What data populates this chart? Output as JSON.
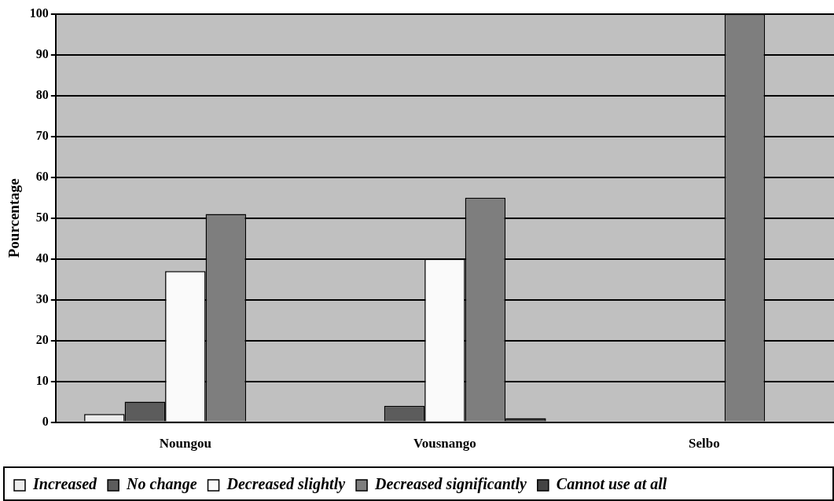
{
  "chart_data": {
    "type": "bar",
    "ylabel": "Pourcentage",
    "categories": [
      "Noungou",
      "Vousnango",
      "Selbo"
    ],
    "series": [
      {
        "name": "Increased",
        "color": "#ececec",
        "values": [
          2,
          0,
          0
        ]
      },
      {
        "name": "No change",
        "color": "#5c5c5c",
        "values": [
          5,
          4,
          0
        ]
      },
      {
        "name": "Decreased slightly",
        "color": "#fafafa",
        "values": [
          37,
          40,
          0
        ]
      },
      {
        "name": "Decreased significantly",
        "color": "#7e7e7e",
        "values": [
          51,
          55,
          100
        ]
      },
      {
        "name": "Cannot use at all",
        "color": "#444444",
        "values": [
          0,
          1,
          0
        ]
      }
    ],
    "ylim": [
      0,
      100
    ],
    "yticks": [
      0,
      10,
      20,
      30,
      40,
      50,
      60,
      70,
      80,
      90,
      100
    ],
    "grid": "y",
    "legend": "bottom"
  }
}
